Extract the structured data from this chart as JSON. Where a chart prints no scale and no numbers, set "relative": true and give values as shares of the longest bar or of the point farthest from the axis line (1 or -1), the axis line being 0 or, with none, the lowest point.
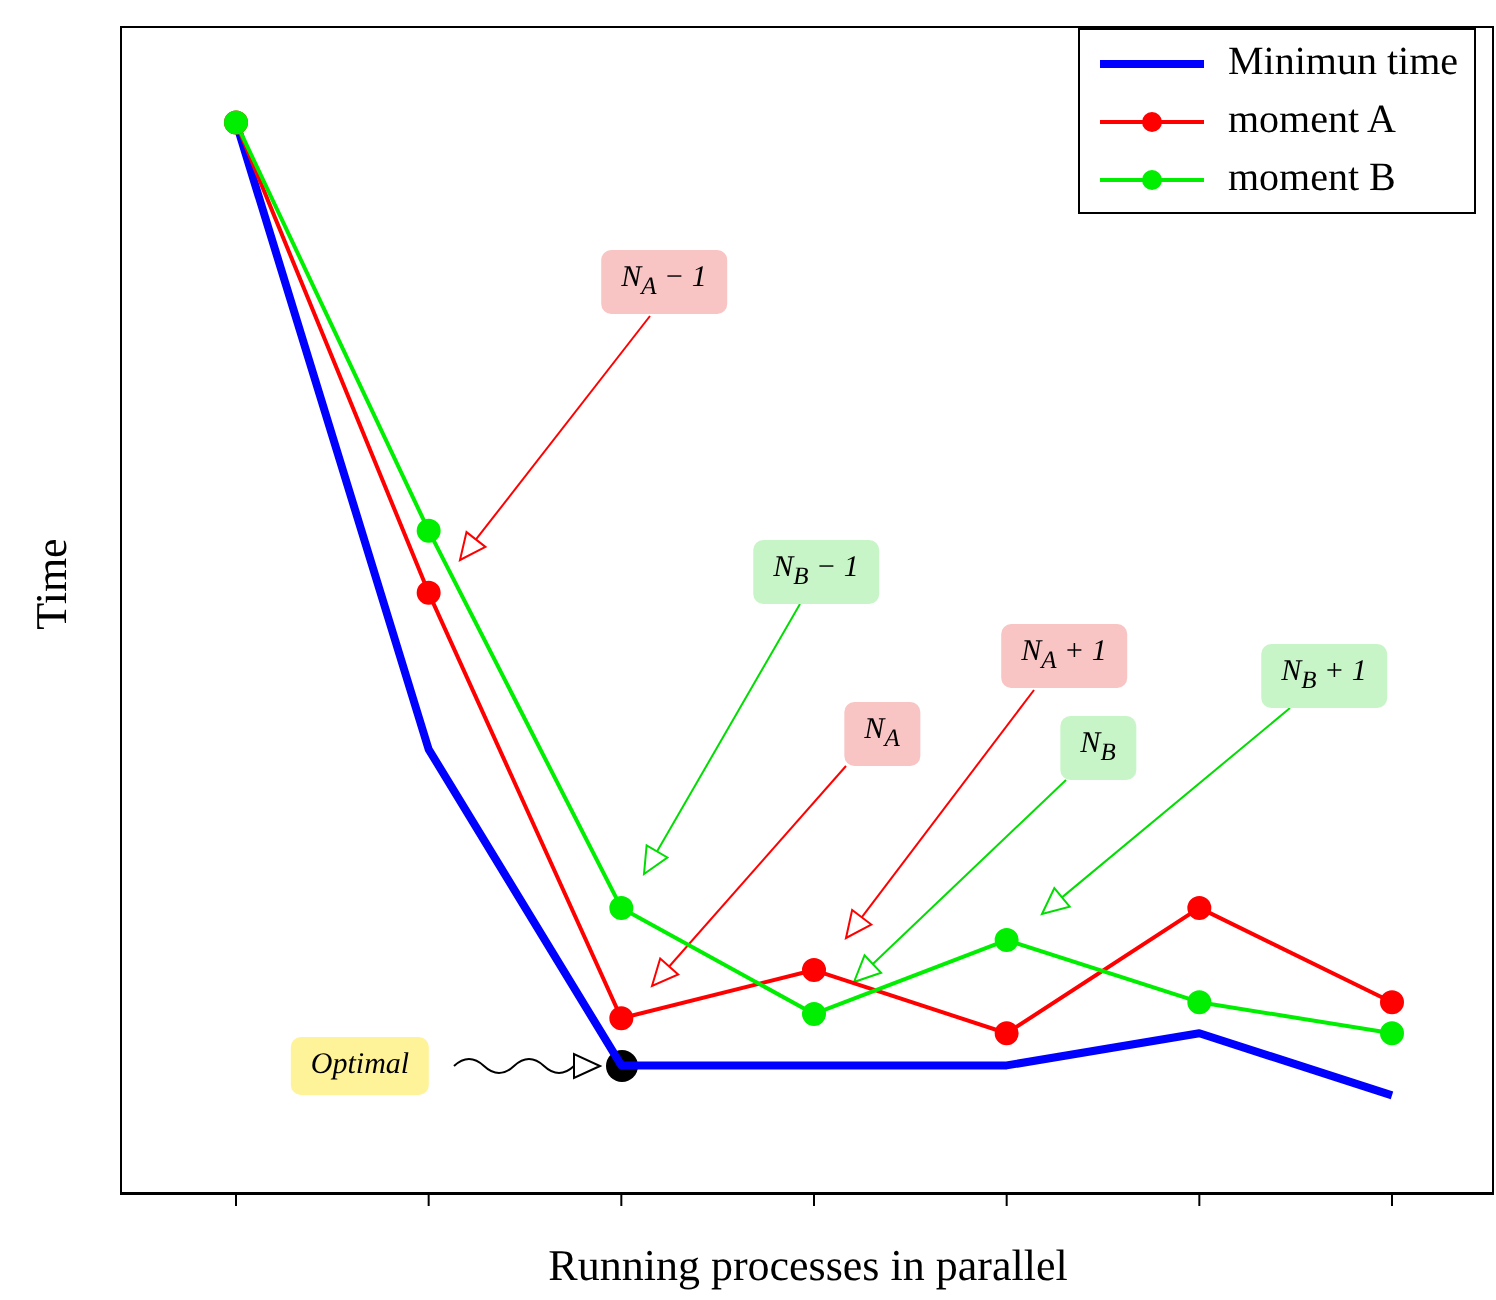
{
  "chart_data": {
    "type": "line",
    "relative": true,
    "xlabel": "Running processes in parallel",
    "ylabel": "Time",
    "categories": [
      null,
      null,
      null,
      null,
      null,
      null,
      null
    ],
    "legend": "top right",
    "line_style": "solid",
    "series": [
      {
        "name": "Minimun time",
        "color": "#0000ff",
        "marker": "none",
        "values": [
          1,
          0.415,
          0.12,
          0.12,
          0.12,
          0.15,
          0.092
        ]
      },
      {
        "name": "moment A",
        "color": "#ff0000",
        "marker": "circle",
        "values": [
          1,
          0.561,
          0.164,
          0.209,
          0.15,
          0.267,
          0.179
        ]
      },
      {
        "name": "moment B",
        "color": "#00ee00",
        "marker": "circle",
        "values": [
          1,
          0.619,
          0.267,
          0.168,
          0.237,
          0.179,
          0.15
        ]
      }
    ],
    "annotations": [
      "N$_{A}$ − 1",
      "N$_{B}$ − 1",
      "N$_{A}$",
      "N$_{A}$ + 1",
      "N$_{B}$",
      "N$_{B}$ + 1",
      "Optimal"
    ]
  }
}
